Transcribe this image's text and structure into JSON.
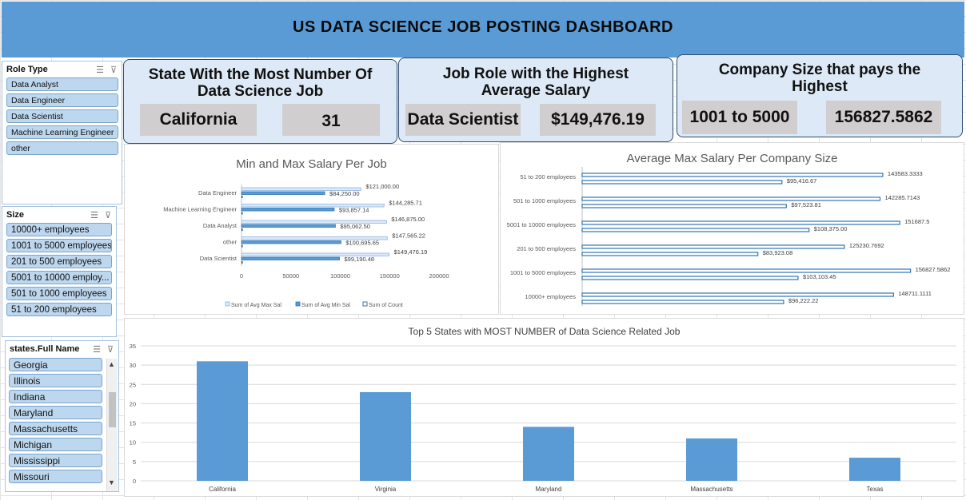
{
  "header": {
    "title": "US DATA SCIENCE JOB POSTING DASHBOARD"
  },
  "kpis": [
    {
      "title_line1": "State With the Most Number Of",
      "title_line2": "Data Science Job",
      "value1": "California",
      "value2": "31"
    },
    {
      "title_line1": "Job Role with the Highest",
      "title_line2": "Average Salary",
      "value1": "Data Scientist",
      "value2": "$149,476.19"
    },
    {
      "title_line1": "Company Size that pays the",
      "title_line2": "Highest",
      "value1": "1001 to 5000",
      "value2": "156827.5862"
    }
  ],
  "slicers": {
    "role": {
      "title": "Role Type",
      "items": [
        "Data Analyst",
        "Data Engineer",
        "Data Scientist",
        "Machine Learning Engineer",
        "other"
      ]
    },
    "size": {
      "title": "Size",
      "items": [
        "10000+ employees",
        "1001 to 5000 employees",
        "201 to 500 employees",
        "5001 to 10000 employ...",
        "501 to 1000 employees",
        "51 to 200 employees"
      ]
    },
    "states": {
      "title": "states.Full Name",
      "items": [
        "Georgia",
        "Illinois",
        "Indiana",
        "Maryland",
        "Massachusetts",
        "Michigan",
        "Mississippi",
        "Missouri"
      ]
    }
  },
  "chart_data": [
    {
      "type": "bar",
      "orientation": "horizontal",
      "title": "Min and Max Salary Per Job",
      "categories": [
        "Data Engineer",
        "Machine Learning Engineer",
        "Data Analyst",
        "other",
        "Data Scientist"
      ],
      "series": [
        {
          "name": "Sum of Avg Max Sal",
          "values": [
            121000.0,
            144285.71,
            146875.0,
            147565.22,
            149476.19
          ],
          "labels": [
            "$121,000.00",
            "$144,285.71",
            "$146,875.00",
            "$147,565.22",
            "$149,476.19"
          ]
        },
        {
          "name": "Sum of Avg Min Sal",
          "values": [
            84250.0,
            93857.14,
            95062.5,
            100695.65,
            99190.48
          ],
          "labels": [
            "$84,250.00",
            "$93,857.14",
            "$95,062.50",
            "$100,695.65",
            "$99,190.48"
          ]
        },
        {
          "name": "Sum of Count",
          "values": [
            1,
            1,
            1,
            1,
            1
          ]
        }
      ],
      "xticks": [
        "0",
        "50000",
        "100000",
        "150000",
        "200000"
      ],
      "xlim": [
        0,
        200000
      ],
      "legend": "bottom"
    },
    {
      "type": "bar",
      "orientation": "horizontal",
      "title": "Average Max Salary Per Company Size",
      "categories": [
        "51 to 200 employees",
        "501 to 1000 employees",
        "5001 to 10000 employees",
        "201 to 500 employees",
        "1001 to 5000 employees",
        "10000+ employees"
      ],
      "series": [
        {
          "values": [
            143583.3333,
            142285.7143,
            151687.5,
            125230.7692,
            156827.5862,
            148711.1111
          ],
          "labels": [
            "143583.3333",
            "142285.7143",
            "151687.5",
            "125230.7692",
            "156827.5862",
            "148711.1111"
          ]
        },
        {
          "values": [
            95416.67,
            97523.81,
            108375.0,
            83923.08,
            103103.45,
            96222.22
          ],
          "labels": [
            "$95,416.67",
            "$97,523.81",
            "$108,375.00",
            "$83,923.08",
            "$103,103.45",
            "$96,222.22"
          ]
        }
      ],
      "xlim": [
        0,
        165000
      ]
    },
    {
      "type": "bar",
      "title": "Top 5  States with MOST NUMBER of Data Science Related Job",
      "categories": [
        "California",
        "Virginia",
        "Maryland",
        "Massachusetts",
        "Texas"
      ],
      "values": [
        31,
        23,
        14,
        11,
        6
      ],
      "yticks": [
        "0",
        "5",
        "10",
        "15",
        "20",
        "25",
        "30",
        "35"
      ],
      "ylim": [
        0,
        35
      ],
      "color": "#5b9bd5"
    }
  ],
  "colors": {
    "banner": "#5b9bd5",
    "card_bg": "#dde9f6",
    "value_box": "#d0cece",
    "slicer_item": "#bdd7ee",
    "bar_fill": "#5b9bd5",
    "bar_light": "#c5daf0",
    "bar_dark": "#2e75b6"
  },
  "icons": [
    "multi-select-icon",
    "clear-filter-icon",
    "scroll-up-icon",
    "scroll-down-icon"
  ]
}
